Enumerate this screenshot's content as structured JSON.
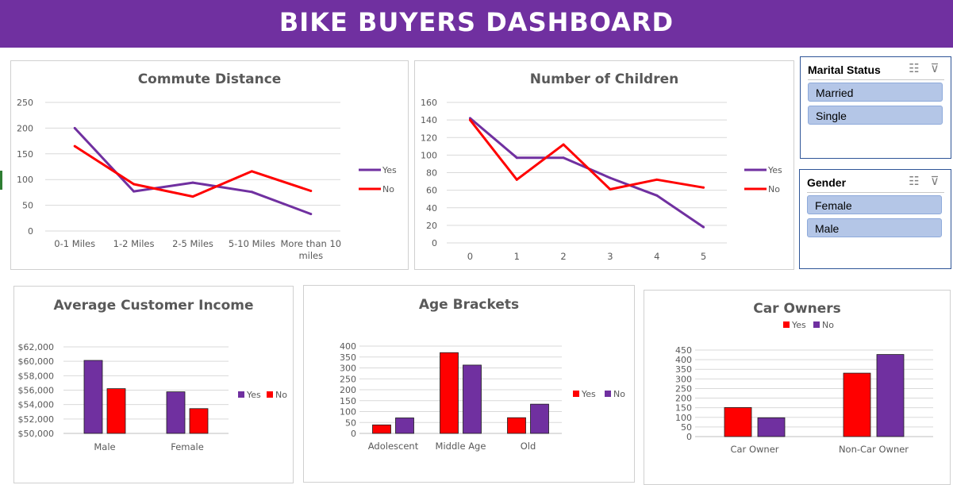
{
  "dashboard": {
    "title": "BIKE BUYERS DASHBOARD"
  },
  "colors": {
    "purple": "#7030a0",
    "red": "#ff0000",
    "banner": "#7030a0",
    "slicer_item": "#b4c6e7",
    "slicer_border": "#2f5597"
  },
  "slicers": {
    "marital": {
      "title": "Marital Status",
      "items": [
        "Married",
        "Single"
      ],
      "icons": [
        "multi-select-icon",
        "clear-filter-icon"
      ]
    },
    "gender": {
      "title": "Gender",
      "items": [
        "Female",
        "Male"
      ],
      "icons": [
        "multi-select-icon",
        "clear-filter-icon"
      ]
    }
  },
  "chart_data": [
    {
      "id": "commute",
      "type": "line",
      "title": "Commute Distance",
      "categories": [
        "0-1 Miles",
        "1-2 Miles",
        "2-5 Miles",
        "5-10 Miles",
        "More than 10 miles"
      ],
      "series": [
        {
          "name": "Yes",
          "color": "#7030a0",
          "values": [
            200,
            77,
            94,
            76,
            33
          ]
        },
        {
          "name": "No",
          "color": "#ff0000",
          "values": [
            165,
            91,
            67,
            116,
            78
          ]
        }
      ],
      "ylim": [
        0,
        250
      ],
      "yticks": [
        "0",
        "50",
        "100",
        "150",
        "200",
        "250"
      ],
      "legend": "right",
      "grid": true
    },
    {
      "id": "children",
      "type": "line",
      "title": "Number of Children",
      "categories": [
        "0",
        "1",
        "2",
        "3",
        "4",
        "5"
      ],
      "series": [
        {
          "name": "Yes",
          "color": "#7030a0",
          "values": [
            142,
            97,
            97,
            74,
            54,
            18
          ]
        },
        {
          "name": "No",
          "color": "#ff0000",
          "values": [
            140,
            72,
            112,
            61,
            72,
            63
          ]
        }
      ],
      "ylim": [
        0,
        160
      ],
      "yticks": [
        "0",
        "20",
        "40",
        "60",
        "80",
        "100",
        "120",
        "140",
        "160"
      ],
      "legend": "right",
      "grid": true
    },
    {
      "id": "income",
      "type": "bar",
      "title": "Average Customer Income",
      "categories": [
        "Male",
        "Female"
      ],
      "series": [
        {
          "name": "Yes",
          "color": "#7030a0",
          "values": [
            60124,
            55768
          ]
        },
        {
          "name": "No",
          "color": "#ff0000",
          "values": [
            56208,
            53440
          ]
        }
      ],
      "ylim": [
        50000,
        62000
      ],
      "yticks": [
        "$50,000",
        "$52,000",
        "$54,000",
        "$56,000",
        "$58,000",
        "$60,000",
        "$62,000"
      ],
      "legend": "right",
      "grid": true
    },
    {
      "id": "age",
      "type": "bar",
      "title": "Age Brackets",
      "categories": [
        "Adolescent",
        "Middle Age",
        "Old"
      ],
      "series": [
        {
          "name": "Yes",
          "color": "#ff0000",
          "values": [
            39,
            370,
            72
          ]
        },
        {
          "name": "No",
          "color": "#7030a0",
          "values": [
            71,
            313,
            134
          ]
        }
      ],
      "ylim": [
        0,
        400
      ],
      "yticks": [
        "0",
        "50",
        "100",
        "150",
        "200",
        "250",
        "300",
        "350",
        "400"
      ],
      "legend": "right",
      "grid": true
    },
    {
      "id": "car",
      "type": "bar",
      "title": "Car Owners",
      "categories": [
        "Car Owner",
        "Non-Car Owner"
      ],
      "series": [
        {
          "name": "Yes",
          "color": "#ff0000",
          "values": [
            151,
            330
          ]
        },
        {
          "name": "No",
          "color": "#7030a0",
          "values": [
            98,
            427
          ]
        }
      ],
      "ylim": [
        0,
        450
      ],
      "yticks": [
        "0",
        "50",
        "100",
        "150",
        "200",
        "250",
        "300",
        "350",
        "400",
        "450"
      ],
      "legend": "top",
      "grid": true
    }
  ]
}
